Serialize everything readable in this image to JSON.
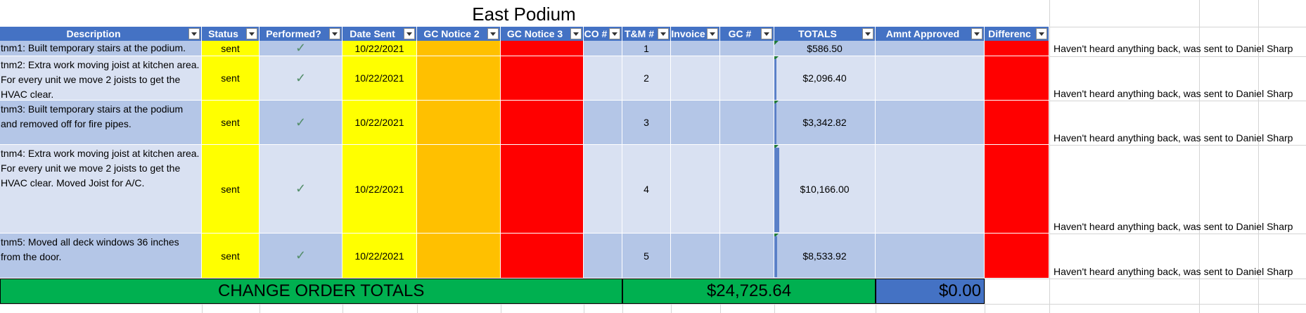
{
  "sheet": {
    "title": "East Podium",
    "headers": [
      "Description",
      "Status",
      "Performed?",
      "Date Sent",
      "GC Notice 2",
      "GC Notice 3",
      "CO #",
      "T&M #",
      "Invoice",
      "GC #",
      "TOTALS",
      "Amnt Approved",
      "Differenc"
    ],
    "rows": [
      {
        "description": "tnm1: Built temporary stairs at the podium.",
        "status": "sent",
        "performed": "✓",
        "date_sent": "10/22/2021",
        "tm": "1",
        "total": "$586.50",
        "note": "Haven't heard anything back, was sent to Daniel Sharp"
      },
      {
        "description": "tnm2: Extra work moving joist at kitchen area. For every unit we move 2 joists to get the HVAC clear.",
        "status": "sent",
        "performed": "✓",
        "date_sent": "10/22/2021",
        "tm": "2",
        "total": "$2,096.40",
        "note": "Haven't heard anything back, was sent to Daniel Sharp"
      },
      {
        "description": "tnm3: Built temporary stairs at the podium and removed off for fire pipes.",
        "status": "sent",
        "performed": "✓",
        "date_sent": "10/22/2021",
        "tm": "3",
        "total": "$3,342.82",
        "note": "Haven't heard anything back, was sent to Daniel Sharp"
      },
      {
        "description": "tnm4: Extra work moving joist at kitchen area. For every unit we move 2 joists to get the HVAC clear. Moved Joist for A/C.",
        "status": "sent",
        "performed": "✓",
        "date_sent": "10/22/2021",
        "tm": "4",
        "total": "$10,166.00",
        "note": "Haven't heard anything back, was sent to Daniel Sharp"
      },
      {
        "description": "tnm5: Moved all deck windows 36 inches from the door.",
        "status": "sent",
        "performed": "✓",
        "date_sent": "10/22/2021",
        "tm": "5",
        "total": "$8,533.92",
        "note": "Haven't heard anything back, was sent to Daniel Sharp"
      }
    ],
    "totals": {
      "label": "CHANGE ORDER TOTALS",
      "grand_total": "$24,725.64",
      "approved_total": "$0.00"
    },
    "colors": {
      "header": "#4472c4",
      "row_dark": "#b4c6e7",
      "row_light": "#d9e1f2",
      "yellow": "#ffff00",
      "orange": "#ffc000",
      "red": "#ff0000",
      "green": "#00b050"
    }
  }
}
